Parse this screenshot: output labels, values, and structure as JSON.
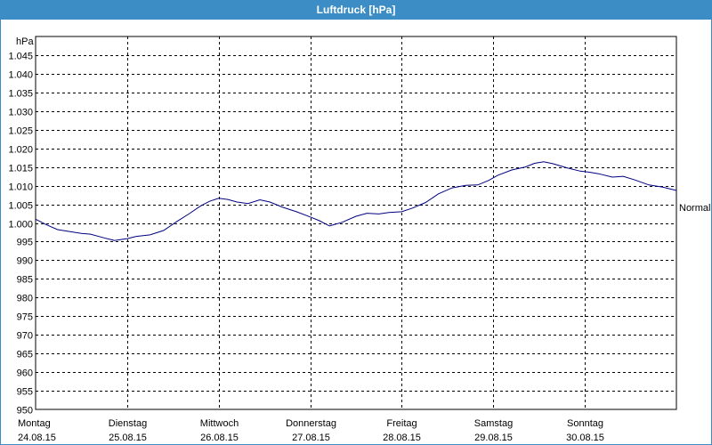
{
  "window": {
    "title": "Luftdruck [hPa]"
  },
  "chart_data": {
    "type": "line",
    "title": "Luftdruck [hPa]",
    "ylabel": "hPa",
    "xlabel": "",
    "ylim": [
      950,
      1050
    ],
    "yticks": [
      {
        "value": 950,
        "label": "950"
      },
      {
        "value": 955,
        "label": "955"
      },
      {
        "value": 960,
        "label": "960"
      },
      {
        "value": 965,
        "label": "965"
      },
      {
        "value": 970,
        "label": "970"
      },
      {
        "value": 975,
        "label": "975"
      },
      {
        "value": 980,
        "label": "980"
      },
      {
        "value": 985,
        "label": "985"
      },
      {
        "value": 990,
        "label": "990"
      },
      {
        "value": 995,
        "label": "995"
      },
      {
        "value": 1000,
        "label": "1.000"
      },
      {
        "value": 1005,
        "label": "1.005"
      },
      {
        "value": 1010,
        "label": "1.010"
      },
      {
        "value": 1015,
        "label": "1.015"
      },
      {
        "value": 1020,
        "label": "1.020"
      },
      {
        "value": 1025,
        "label": "1.025"
      },
      {
        "value": 1030,
        "label": "1.030"
      },
      {
        "value": 1035,
        "label": "1.035"
      },
      {
        "value": 1040,
        "label": "1.040"
      },
      {
        "value": 1045,
        "label": "1.045"
      }
    ],
    "xlim": [
      0,
      7
    ],
    "xticks": [
      {
        "day": 0,
        "weekday": "Montag",
        "date": "24.08.15"
      },
      {
        "day": 1,
        "weekday": "Dienstag",
        "date": "25.08.15"
      },
      {
        "day": 2,
        "weekday": "Mittwoch",
        "date": "26.08.15"
      },
      {
        "day": 3,
        "weekday": "Donnerstag",
        "date": "27.08.15"
      },
      {
        "day": 4,
        "weekday": "Freitag",
        "date": "28.08.15"
      },
      {
        "day": 5,
        "weekday": "Samstag",
        "date": "29.08.15"
      },
      {
        "day": 6,
        "weekday": "Sonntag",
        "date": "30.08.15"
      }
    ],
    "grid": true,
    "annotation": "Normal",
    "line_color": "#000080",
    "series": [
      {
        "x": [
          0,
          0.12,
          0.24,
          0.4,
          0.5,
          0.6,
          0.75,
          0.86,
          1.0,
          1.1,
          1.25,
          1.4,
          1.55,
          1.68,
          1.8,
          1.9,
          2.0,
          2.1,
          2.2,
          2.32,
          2.45,
          2.56,
          2.7,
          2.85,
          3.0,
          3.1,
          3.21,
          3.35,
          3.5,
          3.62,
          3.75,
          3.86,
          4.0,
          4.12,
          4.26,
          4.4,
          4.55,
          4.7,
          4.83,
          4.95,
          5.05,
          5.2,
          5.35,
          5.45,
          5.55,
          5.65,
          5.8,
          5.95,
          6.05,
          6.15,
          6.3,
          6.42,
          6.55,
          6.7,
          6.85,
          7.0
        ],
        "y": [
          1001,
          999.5,
          998.2,
          997.6,
          997.2,
          997.0,
          996.0,
          995.3,
          995.8,
          996.4,
          996.8,
          998.0,
          1000.5,
          1002.5,
          1004.5,
          1005.8,
          1006.6,
          1006.3,
          1005.6,
          1005.2,
          1006.2,
          1005.6,
          1004.2,
          1003.0,
          1001.6,
          1000.6,
          999.2,
          1000.2,
          1001.8,
          1002.6,
          1002.4,
          1002.8,
          1003.0,
          1004.0,
          1005.5,
          1007.8,
          1009.4,
          1010.1,
          1010.2,
          1011.4,
          1012.8,
          1014.2,
          1015.0,
          1016.0,
          1016.4,
          1015.9,
          1014.8,
          1013.9,
          1013.6,
          1013.2,
          1012.3,
          1012.5,
          1011.5,
          1010.2,
          1009.6,
          1008.7
        ]
      }
    ]
  }
}
